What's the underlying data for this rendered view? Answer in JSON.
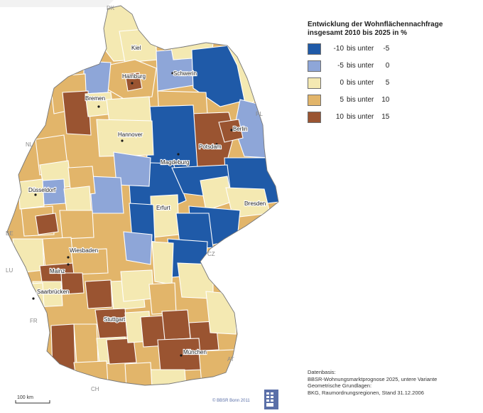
{
  "legend": {
    "title": "Entwicklung der Wohnflächennachfrage insgesamt 2010 bis 2025 in %",
    "classes": [
      {
        "from": "-10",
        "mid": "bis unter",
        "to": "-5",
        "color": "#1f5aa8"
      },
      {
        "from": "-5",
        "mid": "bis unter",
        "to": "0",
        "color": "#8ea6d8"
      },
      {
        "from": "0",
        "mid": "bis unter",
        "to": "5",
        "color": "#f4e9b2"
      },
      {
        "from": "5",
        "mid": "bis unter",
        "to": "10",
        "color": "#e2b56a"
      },
      {
        "from": "10",
        "mid": "bis unter",
        "to": "15",
        "color": "#9a5431"
      }
    ]
  },
  "cities": {
    "kiel": "Kiel",
    "hamburg": "Hamburg",
    "schwerin": "Schwerin",
    "bremen": "Bremen",
    "berlin": "Berlin",
    "hannover": "Hannover",
    "potsdam": "Potsdam",
    "magdeburg": "Magdeburg",
    "duesseldorf": "Düsseldorf",
    "erfurt": "Erfurt",
    "dresden": "Dresden",
    "wiesbaden": "Wiesbaden",
    "mainz": "Mainz",
    "saarbruecken": "Saarbrücken",
    "stuttgart": "Stuttgart",
    "muenchen": "München"
  },
  "countries": {
    "dk": "DK",
    "pl": "PL",
    "nl": "NL",
    "be": "BE",
    "lu": "LU",
    "fr": "FR",
    "cz": "CZ",
    "at": "AT",
    "ch": "CH"
  },
  "scalebar": "100 km",
  "credit": "© BBSR Bonn 2011",
  "source": {
    "line1": "Datenbasis:",
    "line2": "BBSR-Wohnungsmarktprognose 2025, untere Variante",
    "line3": "Geometrische Grundlagen:",
    "line4": "BKG, Raumordnungsregionen, Stand 31.12.2006"
  }
}
